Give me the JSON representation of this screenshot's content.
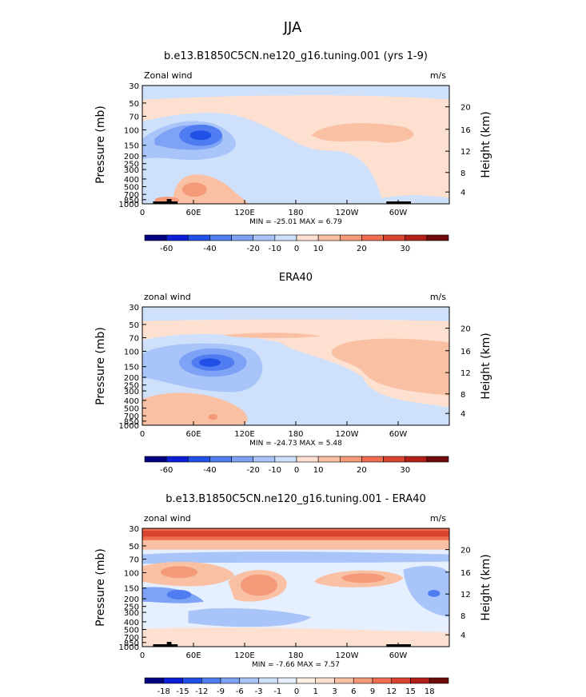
{
  "figure": {
    "season": "JJA"
  },
  "colors": {
    "abs_scale": [
      "#000080",
      "#0a1fd6",
      "#2150e6",
      "#4f7cf0",
      "#7ea2f5",
      "#a9c4f8",
      "#cfe0fb",
      "#fde0d0",
      "#f9c0a4",
      "#f59a78",
      "#ee6e4f",
      "#d94430",
      "#b01f18",
      "#6e0a0a"
    ],
    "diff_scale": [
      "#000080",
      "#0a1fd6",
      "#2150e6",
      "#4f7cf0",
      "#7ea2f5",
      "#a9c4f8",
      "#cfe0fb",
      "#e6effd",
      "#fff0e6",
      "#fde0d0",
      "#f9c0a4",
      "#f59a78",
      "#ee6e4f",
      "#d94430",
      "#b01f18",
      "#6e0a0a"
    ]
  },
  "chart_data": [
    {
      "type": "heatmap",
      "title": "b.e13.B1850C5CN.ne120_g16.tuning.001 (yrs 1-9)",
      "left_label": "Zonal wind",
      "units": "m/s",
      "ylabel": "Pressure (mb)",
      "y2label": "Height (km)",
      "xticks": [
        "0",
        "60E",
        "120E",
        "180",
        "120W",
        "60W"
      ],
      "yticks": [
        "30",
        "50",
        "70",
        "100",
        "150",
        "200",
        "250",
        "300",
        "400",
        "500",
        "700",
        "850",
        "1000"
      ],
      "y2ticks": [
        "20",
        "16",
        "12",
        "8",
        "4"
      ],
      "minmax_label": "MIN = -25.01   MAX =   6.79",
      "colorbar_labels": [
        "-60",
        "-40",
        "-20",
        "-10",
        "0",
        "10",
        "20",
        "30"
      ],
      "scale": "abs_scale"
    },
    {
      "type": "heatmap",
      "title": "ERA40",
      "left_label": "zonal wind",
      "units": "m/s",
      "ylabel": "Pressure (mb)",
      "y2label": "Height (km)",
      "xticks": [
        "0",
        "60E",
        "120E",
        "180",
        "120W",
        "60W"
      ],
      "yticks": [
        "30",
        "50",
        "70",
        "100",
        "150",
        "200",
        "250",
        "300",
        "400",
        "500",
        "700",
        "850",
        "1000"
      ],
      "y2ticks": [
        "20",
        "16",
        "12",
        "8",
        "4"
      ],
      "minmax_label": "MIN = -24.73   MAX =   5.48",
      "colorbar_labels": [
        "-60",
        "-40",
        "-20",
        "-10",
        "0",
        "10",
        "20",
        "30"
      ],
      "scale": "abs_scale"
    },
    {
      "type": "heatmap",
      "title": "b.e13.B1850C5CN.ne120_g16.tuning.001 - ERA40",
      "left_label": "zonal wind",
      "units": "m/s",
      "ylabel": "Pressure (mb)",
      "y2label": "Height (km)",
      "xticks": [
        "0",
        "60E",
        "120E",
        "180",
        "120W",
        "60W"
      ],
      "yticks": [
        "30",
        "50",
        "70",
        "100",
        "150",
        "200",
        "250",
        "300",
        "400",
        "500",
        "700",
        "850",
        "1000"
      ],
      "y2ticks": [
        "20",
        "16",
        "12",
        "8",
        "4"
      ],
      "minmax_label": "MIN =  -7.66   MAX =   7.57",
      "colorbar_labels": [
        "-18",
        "-15",
        "-12",
        "-9",
        "-6",
        "-3",
        "-1",
        "0",
        "1",
        "3",
        "6",
        "9",
        "12",
        "15",
        "18"
      ],
      "scale": "diff_scale"
    }
  ]
}
